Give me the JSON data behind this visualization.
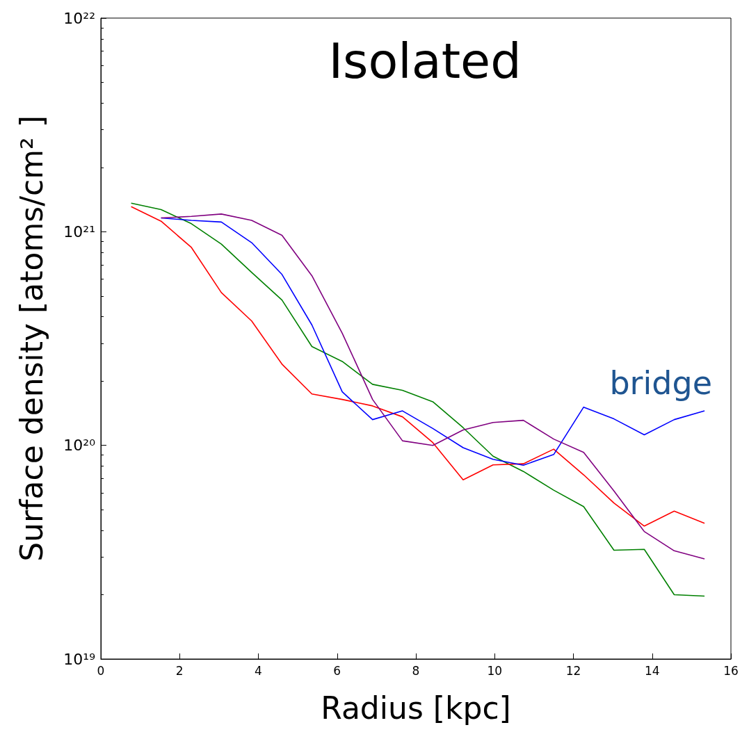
{
  "chart_data": {
    "type": "line",
    "title": "Isolated",
    "xlabel": "Radius [kpc]",
    "ylabel": "Surface density [atoms/cm² ]",
    "log": "y",
    "grid": false,
    "marker": "none",
    "line_style": "solid",
    "xlim": [
      0,
      16
    ],
    "xticks": [
      0,
      2,
      4,
      6,
      8,
      10,
      12,
      14,
      16
    ],
    "ylim": [
      1e+19,
      1e+22
    ],
    "yticks": [
      {
        "value": 1e+19,
        "label": "10¹⁹"
      },
      {
        "value": 1e+20,
        "label": "10²⁰"
      },
      {
        "value": 1e+21,
        "label": "10²¹"
      },
      {
        "value": 1e+22,
        "label": "10²²"
      }
    ],
    "annotations": [
      "bridge"
    ],
    "series": [
      {
        "color": "#008000",
        "x": [
          0.77,
          1.53,
          2.3,
          3.06,
          3.83,
          4.6,
          5.36,
          6.13,
          6.9,
          7.66,
          8.43,
          9.2,
          9.96,
          10.73,
          11.5,
          12.26,
          13.03,
          13.8,
          14.56,
          15.33
        ],
        "values": [
          1.36e+21,
          1.27e+21,
          1.09e+21,
          8.75e+20,
          6.45e+20,
          4.79e+20,
          2.9e+20,
          2.47e+20,
          1.93e+20,
          1.81e+20,
          1.6e+20,
          1.21e+20,
          8.9e+19,
          7.55e+19,
          6.17e+19,
          5.17e+19,
          3.23e+19,
          3.26e+19,
          2e+19,
          1.97e+19
        ]
      },
      {
        "color": "#ff0000",
        "x": [
          0.77,
          1.53,
          2.3,
          3.06,
          3.83,
          4.6,
          5.36,
          6.13,
          6.9,
          7.66,
          8.43,
          9.2,
          9.96,
          10.73,
          11.5,
          12.26,
          13.03,
          13.8,
          14.56,
          15.33
        ],
        "values": [
          1.31e+21,
          1.12e+21,
          8.44e+20,
          5.19e+20,
          3.82e+20,
          2.4e+20,
          1.74e+20,
          1.64e+20,
          1.53e+20,
          1.36e+20,
          1.03e+20,
          6.9e+19,
          8.1e+19,
          8.2e+19,
          9.6e+19,
          7.28e+19,
          5.37e+19,
          4.19e+19,
          4.92e+19,
          4.32e+19
        ]
      },
      {
        "color": "#0000ff",
        "x": [
          1.53,
          2.3,
          3.06,
          3.83,
          4.6,
          5.36,
          6.13,
          6.9,
          7.66,
          8.43,
          9.2,
          9.96,
          10.73,
          11.5,
          12.26,
          13.03,
          13.8,
          14.56,
          15.33
        ],
        "values": [
          1.16e+21,
          1.13e+21,
          1.11e+21,
          8.89e+20,
          6.31e+20,
          3.66e+20,
          1.78e+20,
          1.32e+20,
          1.45e+20,
          1.2e+20,
          9.75e+19,
          8.6e+19,
          8.07e+19,
          9.06e+19,
          1.51e+20,
          1.33e+20,
          1.12e+20,
          1.32e+20,
          1.45e+20
        ]
      },
      {
        "color": "#800080",
        "x": [
          1.53,
          2.3,
          3.06,
          3.83,
          4.6,
          5.36,
          6.13,
          6.9,
          7.66,
          8.43,
          9.2,
          9.96,
          10.73,
          11.5,
          12.26,
          13.03,
          13.8,
          14.56,
          15.33
        ],
        "values": [
          1.16e+21,
          1.18e+21,
          1.21e+21,
          1.13e+21,
          9.62e+20,
          6.22e+20,
          3.35e+20,
          1.64e+20,
          1.05e+20,
          1e+20,
          1.18e+20,
          1.28e+20,
          1.31e+20,
          1.07e+20,
          9.27e+19,
          6.12e+19,
          3.95e+19,
          3.21e+19,
          2.94e+19
        ]
      }
    ]
  }
}
